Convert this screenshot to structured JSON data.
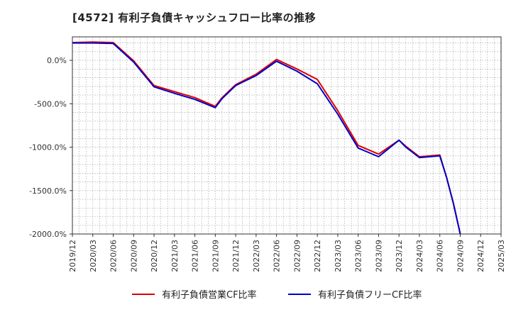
{
  "chart_data": {
    "type": "line",
    "title": "[4572]  有利子負債キャッシュフロー比率の推移",
    "xlabel": "",
    "ylabel": "",
    "ylim": [
      -2000,
      270
    ],
    "yticks": [
      "0.0%",
      "-500.0%",
      "-1000.0%",
      "-1500.0%",
      "-2000.0%"
    ],
    "ytick_values": [
      0,
      -500,
      -1000,
      -1500,
      -2000
    ],
    "xticks": [
      "2019/12",
      "2020/03",
      "2020/06",
      "2020/09",
      "2020/12",
      "2021/03",
      "2021/06",
      "2021/09",
      "2021/12",
      "2022/03",
      "2022/06",
      "2022/09",
      "2022/12",
      "2023/03",
      "2023/06",
      "2023/09",
      "2023/12",
      "2024/03",
      "2024/06",
      "2024/09",
      "2024/12",
      "2025/03"
    ],
    "grid": true,
    "legend_position": "bottom",
    "series": [
      {
        "name": "有利子負債営業CF比率",
        "color": "#e00000",
        "x": [
          "2019/12",
          "2020/03",
          "2020/06",
          "2020/09",
          "2020/12",
          "2021/03",
          "2021/06",
          "2021/09",
          "2021/10",
          "2021/12",
          "2022/03",
          "2022/06",
          "2022/09",
          "2022/12",
          "2023/03",
          "2023/06",
          "2023/09",
          "2023/12",
          "2024/01",
          "2024/03",
          "2024/06",
          "2024/07",
          "2024/08",
          "2024/09"
        ],
        "values": [
          205,
          210,
          205,
          -5,
          -290,
          -360,
          -430,
          -530,
          -430,
          -280,
          -160,
          10,
          -100,
          -220,
          -580,
          -980,
          -1080,
          -920,
          -990,
          -1110,
          -1090,
          -1350,
          -1650,
          -2000
        ]
      },
      {
        "name": "有利子負債フリーCF比率",
        "color": "#0000c8",
        "x": [
          "2019/12",
          "2020/03",
          "2020/06",
          "2020/09",
          "2020/12",
          "2021/03",
          "2021/06",
          "2021/09",
          "2021/10",
          "2021/12",
          "2022/03",
          "2022/06",
          "2022/09",
          "2022/12",
          "2023/03",
          "2023/06",
          "2023/09",
          "2023/12",
          "2024/01",
          "2024/03",
          "2024/06",
          "2024/07",
          "2024/08",
          "2024/09"
        ],
        "values": [
          200,
          200,
          195,
          -20,
          -305,
          -380,
          -450,
          -545,
          -440,
          -290,
          -175,
          -10,
          -125,
          -270,
          -620,
          -1010,
          -1110,
          -920,
          -1000,
          -1120,
          -1100,
          -1350,
          -1650,
          -2000
        ]
      }
    ]
  }
}
